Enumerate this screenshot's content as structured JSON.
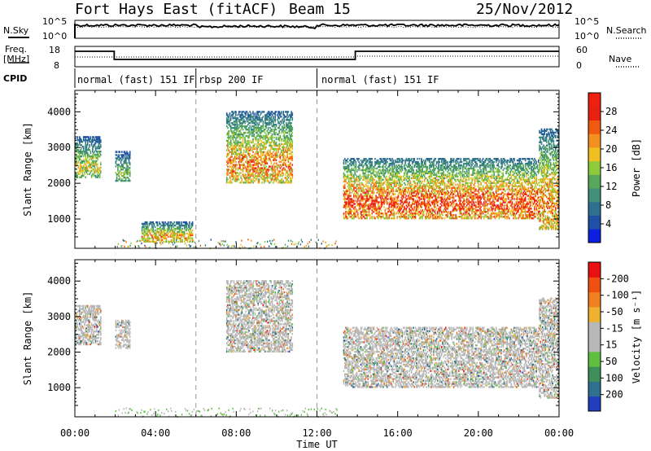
{
  "header": {
    "station": "Fort Hays East (fitACF)",
    "beam": "Beam 15",
    "date": "25/Nov/2012"
  },
  "noise_panel": {
    "left_label": "N.Sky",
    "right_label": "N.Search",
    "top_tick": "10^5",
    "bottom_tick": "10^0"
  },
  "freq_panel": {
    "label_line1": "Freq.",
    "label_line2": "[MHz]",
    "top_tick": "18",
    "bottom_tick": "8",
    "right_label": "Nave",
    "right_top_tick": "60",
    "right_bottom_tick": "0"
  },
  "cpid_panel": {
    "label": "CPID",
    "segments": [
      {
        "name": "normal (fast) 151 IF",
        "start": 0.0,
        "end": 6.0
      },
      {
        "name": "rbsp 200 IF",
        "start": 6.0,
        "end": 12.0
      },
      {
        "name": "normal (fast) 151 IF",
        "start": 12.0,
        "end": 24.0
      }
    ]
  },
  "chart_data": [
    {
      "type": "heatmap",
      "title": "",
      "ylabel": "Slant Range [km]",
      "yticks": [
        1000,
        2000,
        3000,
        4000
      ],
      "ylim": [
        180,
        4600
      ],
      "xlim": [
        0,
        24
      ],
      "colorbar": {
        "label": "Power [dB]",
        "ticks": [
          "4",
          "8",
          "12",
          "16",
          "20",
          "24",
          "28"
        ],
        "range": [
          0,
          30
        ],
        "colors": [
          "#0a1fe0",
          "#1f4fa6",
          "#2f6f8f",
          "#3f8f7a",
          "#57a85a",
          "#8ecb3a",
          "#f0c020",
          "#f49020",
          "#f05a10",
          "#e82010",
          "#f02010"
        ]
      },
      "echo_regions": [
        {
          "t0": 0.0,
          "t1": 1.3,
          "r0": 2150,
          "r1": 3300,
          "peak_db": 20
        },
        {
          "t0": 2.0,
          "t1": 2.7,
          "r0": 2050,
          "r1": 2900,
          "peak_db": 16
        },
        {
          "t0": 3.3,
          "t1": 5.8,
          "r0": 350,
          "r1": 900,
          "peak_db": 24
        },
        {
          "t0": 7.5,
          "t1": 10.8,
          "r0": 2000,
          "r1": 4000,
          "peak_db": 26
        },
        {
          "t0": 13.3,
          "t1": 23.0,
          "r0": 1000,
          "r1": 2700,
          "peak_db": 30
        },
        {
          "t0": 23.0,
          "t1": 24.0,
          "r0": 700,
          "r1": 3500,
          "peak_db": 26
        }
      ],
      "dashed_marks": [
        6.0,
        12.0
      ]
    },
    {
      "type": "heatmap",
      "title": "",
      "ylabel": "Slant Range [km]",
      "yticks": [
        1000,
        2000,
        3000,
        4000
      ],
      "ylim": [
        180,
        4600
      ],
      "xlim": [
        0,
        24
      ],
      "xlabel": "Time UT",
      "xticks": [
        "00:00",
        "04:00",
        "08:00",
        "12:00",
        "16:00",
        "20:00",
        "00:00"
      ],
      "colorbar": {
        "label": "Velocity [m s⁻¹]",
        "ticks": [
          "200",
          "100",
          "50",
          "15",
          "-15",
          "-50",
          "-100",
          "-200"
        ],
        "range": [
          -250,
          250
        ],
        "colors": [
          "#1f3fbf",
          "#2f6f8f",
          "#3f8f5a",
          "#5fc040",
          "#b8b8b8",
          "#b8b8b8",
          "#f0b030",
          "#f08020",
          "#f05010",
          "#e81010"
        ]
      },
      "echo_regions": [
        {
          "t0": 0.0,
          "t1": 1.3,
          "r0": 2200,
          "r1": 3300,
          "mean_vel": 0
        },
        {
          "t0": 2.0,
          "t1": 2.7,
          "r0": 2100,
          "r1": 2900,
          "mean_vel": 0
        },
        {
          "t0": 7.5,
          "t1": 10.8,
          "r0": 2000,
          "r1": 4000,
          "mean_vel": 0
        },
        {
          "t0": 13.3,
          "t1": 23.0,
          "r0": 1000,
          "r1": 2700,
          "mean_vel": 0
        },
        {
          "t0": 23.0,
          "t1": 24.0,
          "r0": 700,
          "r1": 3500,
          "mean_vel": 0
        }
      ],
      "dashed_marks": [
        6.0,
        12.0
      ]
    }
  ]
}
